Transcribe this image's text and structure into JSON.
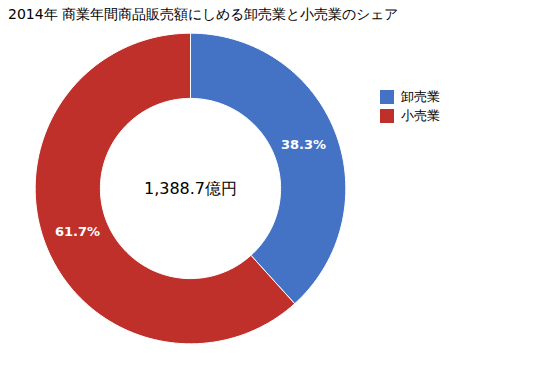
{
  "chart_data": {
    "type": "pie",
    "title": "2014年 商業年間商品販売額にしめる卸売業と小売業のシェア",
    "categories": [
      "卸売業",
      "小売業"
    ],
    "values": [
      38.3,
      61.7
    ],
    "value_labels": [
      "38.3%",
      "61.7%"
    ],
    "data_labels": true,
    "colors": [
      "#4472C4",
      "#C0302A"
    ],
    "annotation": "1,388.7億円",
    "legend": "right"
  }
}
